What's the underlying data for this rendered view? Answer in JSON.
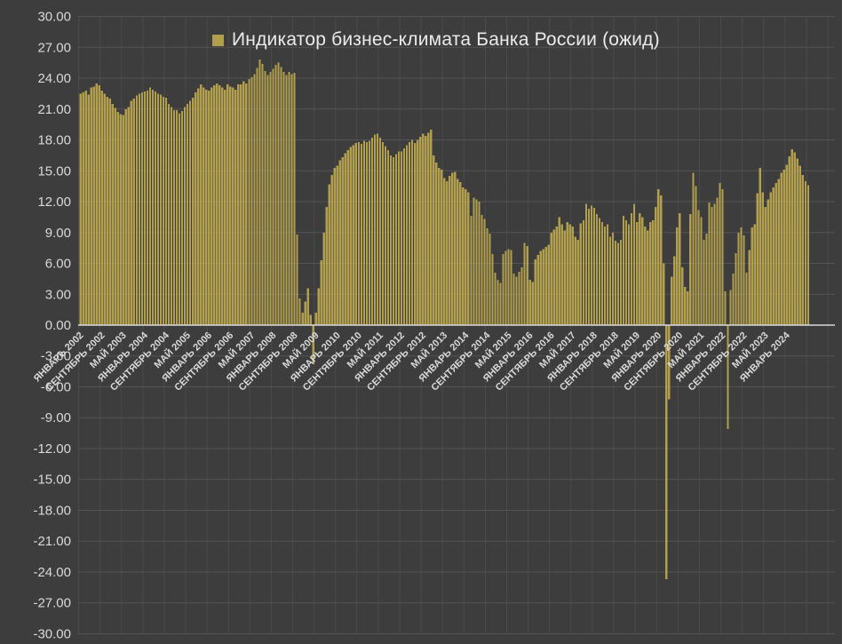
{
  "window": {
    "background_color": "#3d3d3d"
  },
  "chart_data": {
    "type": "bar",
    "title": "Индикатор бизнес-климата Банка России (ожид)",
    "legend": [
      {
        "label": "Индикатор бизнес-климата Банка России (ожид)",
        "color": "#b29f4d"
      }
    ],
    "legend_position": "top-center",
    "grid": true,
    "frequency": "monthly",
    "x_start": "ЯНВАРЬ 2002",
    "x_end": "СЕНТЯБРЬ 2024",
    "x_tick_interval_months": 8,
    "x_tick_labels": [
      "ЯНВАРЬ 2002",
      "СЕНТЯБРЬ 2002",
      "МАЙ 2003",
      "ЯНВАРЬ 2004",
      "СЕНТЯБРЬ 2004",
      "МАЙ 2005",
      "ЯНВАРЬ 2006",
      "СЕНТЯБРЬ 2006",
      "МАЙ 2007",
      "ЯНВАРЬ 2008",
      "СЕНТЯБРЬ 2008",
      "МАЙ 2009",
      "ЯНВАРЬ 2010",
      "СЕНТЯБРЬ 2010",
      "МАЙ 2011",
      "ЯНВАРЬ 2012",
      "СЕНТЯБРЬ 2012",
      "МАЙ 2013",
      "ЯНВАРЬ 2014",
      "СЕНТЯБРЬ 2014",
      "МАЙ 2015",
      "ЯНВАРЬ 2016",
      "СЕНТЯБРЬ 2016",
      "МАЙ 2017",
      "ЯНВАРЬ 2018",
      "СЕНТЯБРЬ 2018",
      "МАЙ 2019",
      "ЯНВАРЬ 2020",
      "СЕНТЯБРЬ 2020",
      "МАЙ 2021",
      "ЯНВАРЬ 2022",
      "СЕНТЯБРЬ 2022",
      "МАЙ 2023",
      "ЯНВАРЬ 2024"
    ],
    "y_tick_labels": [
      "30.00",
      "27.00",
      "24.00",
      "21.00",
      "18.00",
      "15.00",
      "12.00",
      "9.00",
      "6.00",
      "3.00",
      "0.00",
      "-3.00",
      "-6.00",
      "-9.00",
      "-12.00",
      "-15.00",
      "-18.00",
      "-21.00",
      "-24.00",
      "-27.00",
      "-30.00"
    ],
    "ylim": [
      -30,
      30
    ],
    "y_step": 3,
    "values": [
      22.5,
      22.6,
      22.8,
      22.4,
      23.1,
      23.2,
      23.5,
      23.3,
      22.8,
      22.5,
      22.2,
      22.0,
      21.5,
      21.1,
      20.7,
      20.5,
      20.4,
      21.0,
      21.2,
      21.8,
      22.0,
      22.3,
      22.5,
      22.6,
      22.7,
      22.8,
      23.1,
      22.9,
      22.7,
      22.5,
      22.4,
      22.2,
      22.1,
      21.5,
      21.2,
      20.9,
      20.9,
      20.6,
      20.8,
      21.2,
      21.5,
      21.8,
      22.1,
      22.6,
      23.0,
      23.4,
      23.1,
      22.9,
      22.8,
      23.1,
      23.3,
      23.5,
      23.3,
      23.1,
      22.9,
      23.4,
      23.2,
      23.1,
      22.9,
      23.4,
      23.4,
      23.7,
      23.5,
      23.9,
      24.1,
      24.4,
      25.0,
      25.8,
      25.4,
      24.7,
      24.3,
      24.6,
      24.9,
      25.3,
      25.5,
      25.1,
      24.6,
      24.3,
      24.6,
      24.4,
      24.5,
      8.8,
      2.6,
      1.2,
      2.3,
      3.6,
      1.0,
      -3.8,
      1.2,
      3.6,
      6.3,
      9.0,
      11.5,
      13.7,
      14.6,
      15.3,
      15.5,
      16.0,
      16.3,
      16.7,
      17.0,
      17.3,
      17.5,
      17.7,
      17.8,
      17.6,
      17.9,
      17.8,
      17.9,
      18.2,
      18.5,
      18.6,
      18.2,
      17.8,
      17.4,
      17.0,
      16.5,
      16.3,
      16.6,
      16.9,
      16.9,
      17.2,
      17.5,
      17.8,
      18.0,
      17.7,
      18.0,
      18.3,
      18.6,
      18.4,
      18.7,
      19.0,
      16.5,
      15.8,
      15.3,
      15.1,
      14.3,
      14.0,
      14.5,
      14.8,
      14.9,
      14.2,
      13.9,
      13.4,
      13.2,
      12.9,
      10.6,
      12.4,
      12.2,
      12.0,
      10.7,
      10.3,
      9.4,
      8.9,
      6.9,
      5.1,
      4.4,
      4.1,
      6.9,
      7.2,
      7.4,
      7.3,
      5.0,
      4.7,
      5.2,
      5.6,
      8.0,
      7.7,
      4.4,
      4.2,
      6.4,
      6.8,
      7.2,
      7.4,
      7.6,
      7.8,
      9.0,
      9.3,
      9.6,
      10.5,
      9.8,
      9.2,
      10.0,
      9.8,
      9.6,
      8.6,
      8.3,
      9.9,
      10.2,
      11.8,
      11.3,
      11.6,
      11.4,
      10.8,
      10.4,
      10.0,
      9.6,
      9.8,
      8.6,
      9.0,
      8.2,
      8.0,
      8.3,
      10.6,
      10.2,
      9.8,
      10.9,
      11.8,
      10.0,
      10.9,
      10.5,
      9.6,
      9.2,
      10.0,
      10.2,
      11.5,
      13.2,
      12.6,
      6.0,
      -24.7,
      -7.2,
      4.7,
      6.7,
      9.5,
      10.9,
      5.6,
      3.7,
      3.3,
      10.8,
      14.8,
      13.5,
      11.2,
      10.5,
      8.3,
      8.9,
      11.9,
      11.5,
      11.8,
      12.4,
      13.8,
      13.2,
      3.3,
      -10.1,
      3.4,
      5.0,
      7.0,
      9.0,
      9.5,
      8.7,
      5.1,
      7.3,
      9.5,
      9.8,
      12.8,
      15.3,
      12.9,
      11.5,
      12.2,
      12.9,
      13.4,
      13.8,
      14.2,
      14.8,
      15.1,
      15.6,
      16.4,
      17.1,
      16.8,
      16.2,
      15.5,
      14.6,
      14.0,
      13.6
    ],
    "colors": {
      "bar": "#b29f4d",
      "background": "#3d3d3d",
      "gridline": "#4b4b4b",
      "gridline_overlay": "rgba(255,255,255,0.05)",
      "zero_axis": "#d9d9d9",
      "tick_label": "#d9d9d9",
      "legend_text": "#ebebeb"
    }
  }
}
